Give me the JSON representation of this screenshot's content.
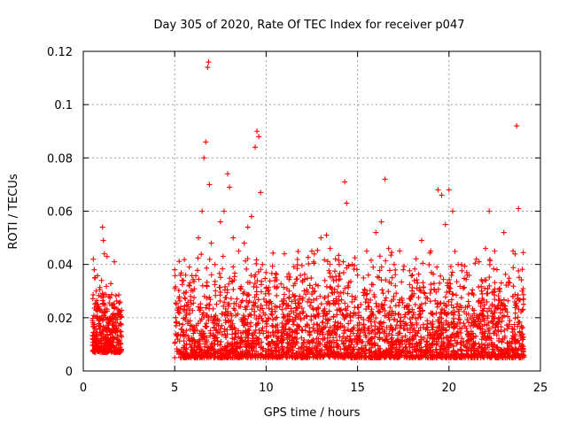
{
  "chart_data": {
    "type": "scatter",
    "title": "Day 305 of 2020, Rate Of TEC Index for receiver p047",
    "xlabel": "GPS time / hours",
    "ylabel": "ROTI / TECUs",
    "xlim": [
      0,
      25
    ],
    "ylim": [
      0,
      0.12
    ],
    "x_ticks": [
      0,
      5,
      10,
      15,
      20,
      25
    ],
    "x_tick_labels": [
      "0",
      "5",
      "10",
      "15",
      "20",
      "25"
    ],
    "y_ticks": [
      0,
      0.02,
      0.04,
      0.06,
      0.08,
      0.1,
      0.12
    ],
    "y_tick_labels": [
      "0",
      "0.02",
      "0.04",
      "0.06",
      "0.08",
      "0.1",
      "0.12"
    ],
    "grid": true,
    "marker": "+",
    "color": "#ff0000",
    "series": [
      {
        "points": [
          [
            0.5,
            0.012
          ],
          [
            0.55,
            0.042
          ],
          [
            0.6,
            0.038
          ],
          [
            0.7,
            0.03
          ],
          [
            0.8,
            0.025
          ],
          [
            0.9,
            0.02
          ],
          [
            1.0,
            0.034
          ],
          [
            1.05,
            0.054
          ],
          [
            1.1,
            0.049
          ],
          [
            1.15,
            0.044
          ],
          [
            1.3,
            0.043
          ],
          [
            1.4,
            0.028
          ],
          [
            1.6,
            0.025
          ],
          [
            1.7,
            0.041
          ],
          [
            1.8,
            0.02
          ],
          [
            2.0,
            0.015
          ],
          [
            5.0,
            0.038
          ],
          [
            5.2,
            0.022
          ],
          [
            5.4,
            0.034
          ],
          [
            5.6,
            0.036
          ],
          [
            5.8,
            0.039
          ],
          [
            6.0,
            0.03
          ],
          [
            6.3,
            0.05
          ],
          [
            6.5,
            0.06
          ],
          [
            6.6,
            0.08
          ],
          [
            6.7,
            0.086
          ],
          [
            6.8,
            0.114
          ],
          [
            6.85,
            0.116
          ],
          [
            6.9,
            0.07
          ],
          [
            7.0,
            0.048
          ],
          [
            7.2,
            0.04
          ],
          [
            7.5,
            0.056
          ],
          [
            7.7,
            0.06
          ],
          [
            7.9,
            0.074
          ],
          [
            8.0,
            0.069
          ],
          [
            8.2,
            0.05
          ],
          [
            8.5,
            0.045
          ],
          [
            8.8,
            0.048
          ],
          [
            9.0,
            0.054
          ],
          [
            9.2,
            0.058
          ],
          [
            9.4,
            0.084
          ],
          [
            9.5,
            0.09
          ],
          [
            9.6,
            0.088
          ],
          [
            9.7,
            0.067
          ],
          [
            9.8,
            0.04
          ],
          [
            10.0,
            0.031
          ],
          [
            10.5,
            0.035
          ],
          [
            11.0,
            0.044
          ],
          [
            11.5,
            0.032
          ],
          [
            12.0,
            0.034
          ],
          [
            12.5,
            0.045
          ],
          [
            13.0,
            0.05
          ],
          [
            13.3,
            0.051
          ],
          [
            13.5,
            0.046
          ],
          [
            14.0,
            0.04
          ],
          [
            14.3,
            0.071
          ],
          [
            14.4,
            0.063
          ],
          [
            14.7,
            0.04
          ],
          [
            15.0,
            0.036
          ],
          [
            15.5,
            0.045
          ],
          [
            16.0,
            0.052
          ],
          [
            16.3,
            0.056
          ],
          [
            16.5,
            0.072
          ],
          [
            16.7,
            0.046
          ],
          [
            17.0,
            0.04
          ],
          [
            17.5,
            0.038
          ],
          [
            18.0,
            0.036
          ],
          [
            18.5,
            0.049
          ],
          [
            19.0,
            0.045
          ],
          [
            19.4,
            0.068
          ],
          [
            19.6,
            0.066
          ],
          [
            19.8,
            0.055
          ],
          [
            20.0,
            0.068
          ],
          [
            20.2,
            0.06
          ],
          [
            20.5,
            0.04
          ],
          [
            21.0,
            0.036
          ],
          [
            21.5,
            0.042
          ],
          [
            22.0,
            0.046
          ],
          [
            22.2,
            0.06
          ],
          [
            22.5,
            0.045
          ],
          [
            23.0,
            0.052
          ],
          [
            23.5,
            0.045
          ],
          [
            23.7,
            0.092
          ],
          [
            23.8,
            0.061
          ],
          [
            24.0,
            0.03
          ]
        ]
      }
    ]
  }
}
